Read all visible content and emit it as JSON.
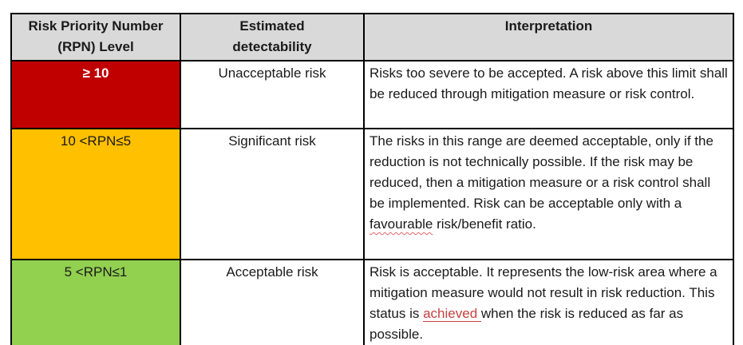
{
  "colors": {
    "header_bg": "#d9d9d9",
    "unacceptable_red": "#c00000",
    "significant_orange": "#ffc000",
    "acceptable_green": "#92d050",
    "border": "#000000",
    "inserted_text_red": "#c3423f",
    "spellcheck_wavy_red": "#e06666",
    "level_red_text": "#ffffff"
  },
  "table": {
    "headers": [
      {
        "label": "Risk Priority Number\n(RPN) Level"
      },
      {
        "label": "Estimated\ndetectability"
      },
      {
        "label": "Interpretation"
      }
    ],
    "rows": [
      {
        "level": "≥ 10",
        "detectability": "Unacceptable risk",
        "interpretation_parts": [
          "Risks too severe to be accepted. A risk above this limit shall be reduced through mitigation measure or risk control."
        ]
      },
      {
        "level": "10 <RPN≤5",
        "detectability": "Significant risk",
        "interpretation_parts": [
          "The risks in this range are deemed acceptable, only if the reduction is not technically possible. If the risk may be reduced, then a mitigation measure or a risk control shall be implemented. Risk can be acceptable only with a ",
          "favourable",
          " risk/benefit ratio."
        ]
      },
      {
        "level": "5 <RPN≤1",
        "detectability": "Acceptable risk",
        "interpretation_parts": [
          "Risk is acceptable. It represents the low-risk area where a mitigation measure would not result in risk reduction. This status is ",
          "achieved ",
          "when the risk is reduced as far as possible."
        ]
      }
    ]
  }
}
